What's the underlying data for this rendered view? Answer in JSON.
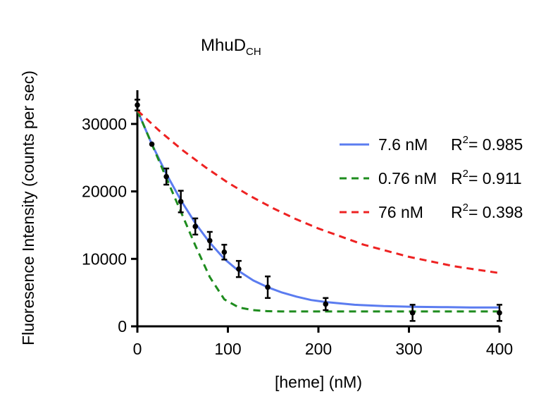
{
  "chart_data": {
    "type": "scatter",
    "title": "MhuD",
    "title_subscript": "CH",
    "xlabel": "[heme] (nM)",
    "ylabel": "Fluoresence Intensity (counts per sec)",
    "xlim": [
      0,
      400
    ],
    "ylim": [
      0,
      35000
    ],
    "xticks": [
      0,
      100,
      200,
      300,
      400
    ],
    "yticks": [
      0,
      10000,
      20000,
      30000
    ],
    "xtick_labels": [
      "0",
      "100",
      "200",
      "300",
      "400"
    ],
    "ytick_labels": [
      "0",
      "10000",
      "20000",
      "30000"
    ],
    "grid": false,
    "legend_position": "right",
    "points": {
      "x": [
        0,
        16,
        32,
        48,
        64,
        80,
        96,
        112,
        144,
        208,
        304,
        400
      ],
      "y": [
        32800,
        27000,
        22200,
        18500,
        14800,
        12700,
        11000,
        8500,
        5800,
        3300,
        2000,
        2000
      ],
      "err": [
        800,
        0,
        1200,
        1600,
        1200,
        1300,
        1100,
        1200,
        1600,
        900,
        1200,
        1200
      ],
      "color": "#000000"
    },
    "series": [
      {
        "name": "7.6 nM",
        "r2_label": "R",
        "r2_sup": "2",
        "r2_value": "= 0.985",
        "color": "#5b7cf0",
        "dash": "solid",
        "x": [
          0,
          16,
          32,
          48,
          64,
          80,
          96,
          112,
          128,
          144,
          160,
          176,
          192,
          208,
          240,
          272,
          304,
          336,
          368,
          400
        ],
        "y": [
          32000,
          27000,
          22600,
          18700,
          15300,
          12400,
          10000,
          8200,
          6800,
          5800,
          5000,
          4400,
          3900,
          3600,
          3200,
          3000,
          2900,
          2850,
          2800,
          2800
        ]
      },
      {
        "name": "0.76 nM",
        "r2_label": "R",
        "r2_sup": "2",
        "r2_value": "= 0.911",
        "color": "#1e8c1e",
        "dash": "dashed",
        "x": [
          0,
          16,
          32,
          48,
          64,
          80,
          96,
          112,
          128,
          144,
          160,
          208,
          304,
          400
        ],
        "y": [
          32000,
          27000,
          22000,
          17000,
          12000,
          7300,
          4000,
          2800,
          2400,
          2250,
          2200,
          2200,
          2200,
          2200
        ]
      },
      {
        "name": "76 nM",
        "r2_label": "R",
        "r2_sup": "2",
        "r2_value": "= 0.398",
        "color": "#ee2222",
        "dash": "dashed",
        "x": [
          0,
          25,
          50,
          75,
          100,
          125,
          150,
          175,
          200,
          250,
          300,
          350,
          400
        ],
        "y": [
          32000,
          28900,
          26100,
          23600,
          21300,
          19300,
          17500,
          15900,
          14500,
          12100,
          10300,
          8900,
          7900
        ]
      }
    ]
  }
}
